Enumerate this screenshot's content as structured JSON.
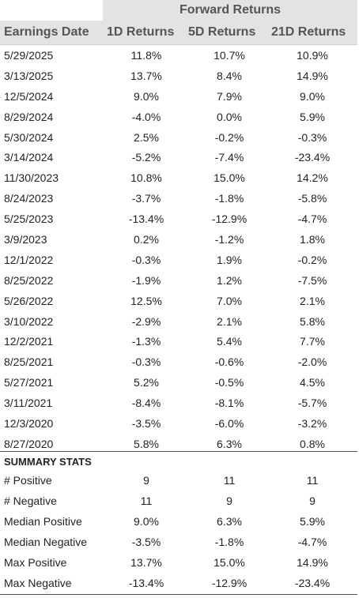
{
  "header": {
    "group_title": "Forward Returns",
    "columns": [
      "Earnings Date",
      "1D Returns",
      "5D Returns",
      "21D Returns"
    ]
  },
  "rows": [
    [
      "5/29/2025",
      "11.8%",
      "10.7%",
      "10.9%"
    ],
    [
      "3/13/2025",
      "13.7%",
      "8.4%",
      "14.9%"
    ],
    [
      "12/5/2024",
      "9.0%",
      "7.9%",
      "9.0%"
    ],
    [
      "8/29/2024",
      "-4.0%",
      "0.0%",
      "5.9%"
    ],
    [
      "5/30/2024",
      "2.5%",
      "-0.2%",
      "-0.3%"
    ],
    [
      "3/14/2024",
      "-5.2%",
      "-7.4%",
      "-23.4%"
    ],
    [
      "11/30/2023",
      "10.8%",
      "15.0%",
      "14.2%"
    ],
    [
      "8/24/2023",
      "-3.7%",
      "-1.8%",
      "-5.8%"
    ],
    [
      "5/25/2023",
      "-13.4%",
      "-12.9%",
      "-4.7%"
    ],
    [
      "3/9/2023",
      "0.2%",
      "-1.2%",
      "1.8%"
    ],
    [
      "12/1/2022",
      "-0.3%",
      "1.9%",
      "-0.2%"
    ],
    [
      "8/25/2022",
      "-1.9%",
      "1.2%",
      "-7.5%"
    ],
    [
      "5/26/2022",
      "12.5%",
      "7.0%",
      "2.1%"
    ],
    [
      "3/10/2022",
      "-2.9%",
      "2.1%",
      "5.8%"
    ],
    [
      "12/2/2021",
      "-1.3%",
      "5.4%",
      "7.7%"
    ],
    [
      "8/25/2021",
      "-0.3%",
      "-0.6%",
      "-2.0%"
    ],
    [
      "5/27/2021",
      "5.2%",
      "-0.5%",
      "4.5%"
    ],
    [
      "3/11/2021",
      "-8.4%",
      "-8.1%",
      "-5.7%"
    ],
    [
      "12/3/2020",
      "-3.5%",
      "-6.0%",
      "-3.2%"
    ],
    [
      "8/27/2020",
      "5.8%",
      "6.3%",
      "0.8%"
    ]
  ],
  "summary": {
    "title": "SUMMARY STATS",
    "rows": [
      [
        "# Positive",
        "9",
        "11",
        "11"
      ],
      [
        "# Negative",
        "11",
        "9",
        "9"
      ],
      [
        "Median Positive",
        "9.0%",
        "6.3%",
        "5.9%"
      ],
      [
        "Median Negative",
        "-3.5%",
        "-1.8%",
        "-4.7%"
      ],
      [
        "Max Positive",
        "13.7%",
        "15.0%",
        "14.9%"
      ],
      [
        "Max Negative",
        "-13.4%",
        "-12.9%",
        "-23.4%"
      ]
    ]
  }
}
